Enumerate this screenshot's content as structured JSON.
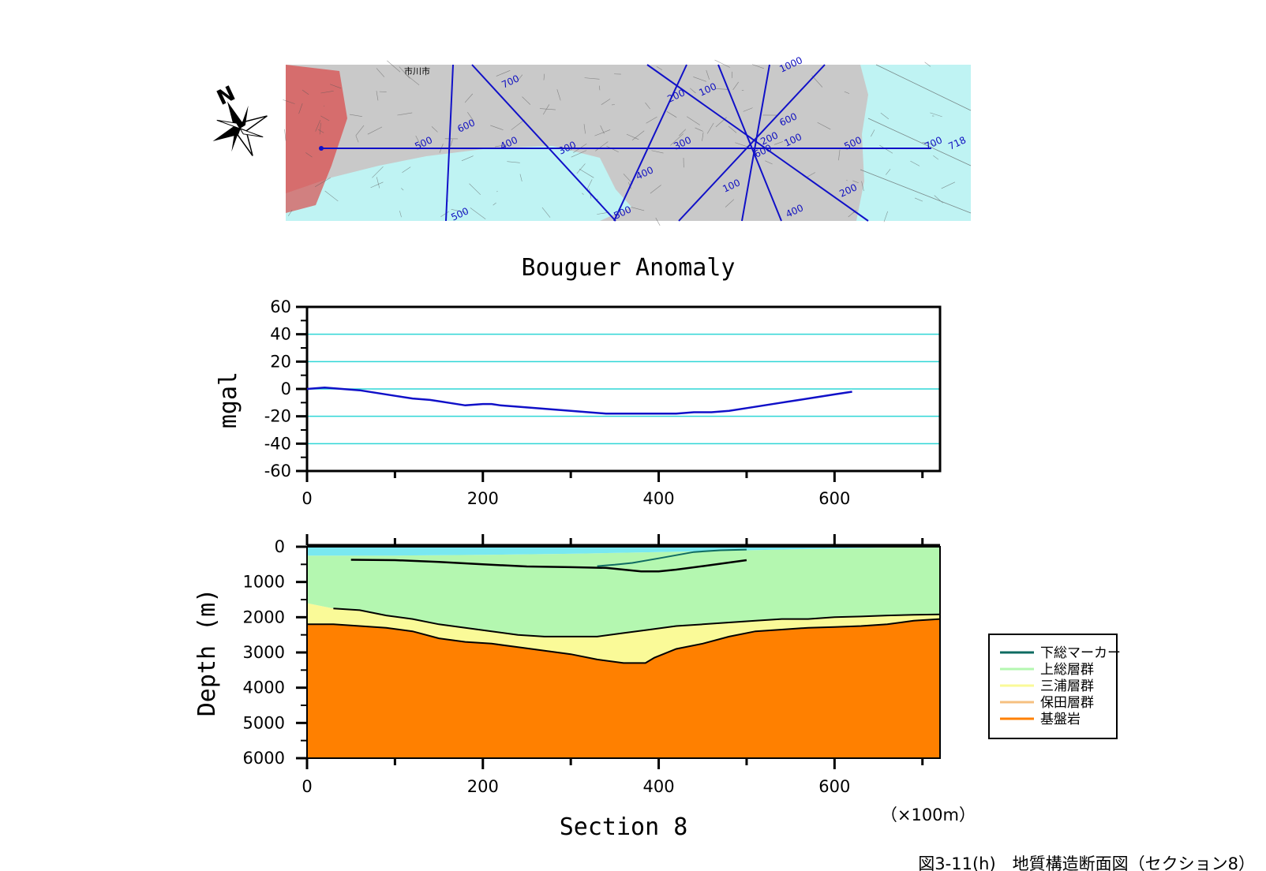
{
  "map": {
    "place_label": "市川市",
    "line_labels": [
      "700",
      "600",
      "500",
      "400",
      "300",
      "200",
      "100",
      "1000",
      "718",
      "700",
      "600",
      "500",
      "400",
      "300",
      "200",
      "100",
      "500",
      "200",
      "600",
      "100",
      "400",
      "500"
    ],
    "compass_label": "N"
  },
  "colors": {
    "water": "#bff3f3",
    "gravity_line": "#1010c8",
    "grid": "#2fd6d6",
    "shimousa_marker": "#0f6b62",
    "kazusa": "#b4f7b0",
    "miura": "#fafa98",
    "hoda": "#f6c080",
    "basement": "#ff8000",
    "sea_layer": "#79e8f0"
  },
  "chart_data": [
    {
      "type": "line",
      "title": "Bouguer Anomaly",
      "xlabel": "",
      "ylabel": "mgal",
      "xlim": [
        0,
        720
      ],
      "ylim": [
        -60,
        60
      ],
      "x_ticks": [
        0,
        200,
        400,
        600
      ],
      "y_ticks": [
        60,
        40,
        20,
        0,
        -20,
        -40,
        -60
      ],
      "grid": "horizontal",
      "series": [
        {
          "x": [
            0,
            20,
            40,
            60,
            80,
            100,
            120,
            140,
            160,
            180,
            200,
            210,
            220,
            240,
            260,
            280,
            300,
            320,
            340,
            360,
            380,
            400,
            420,
            440,
            460,
            480,
            500,
            520,
            540,
            560,
            580,
            600,
            620
          ],
          "y": [
            0,
            1,
            0,
            -1,
            -3,
            -5,
            -7,
            -8,
            -10,
            -12,
            -11,
            -11,
            -12,
            -13,
            -14,
            -15,
            -16,
            -17,
            -18,
            -18,
            -18,
            -18,
            -18,
            -17,
            -17,
            -16,
            -14,
            -12,
            -10,
            -8,
            -6,
            -4,
            -2
          ]
        }
      ]
    },
    {
      "type": "area",
      "title": "",
      "xlabel": "Section 8",
      "ylabel": "Depth (m)",
      "xlim": [
        0,
        720
      ],
      "ylim": [
        6000,
        0
      ],
      "x_ticks": [
        0,
        200,
        400,
        600
      ],
      "y_ticks": [
        0,
        1000,
        2000,
        3000,
        4000,
        5000,
        6000
      ],
      "unit_note": "（×100m）",
      "legend_position": "right",
      "legend": [
        "下総マーカー",
        "上総層群",
        "三浦層群",
        "保田層群",
        "基盤岩"
      ],
      "layers": {
        "sea_bottom": {
          "x": [
            0,
            100,
            200,
            300,
            400,
            500,
            600,
            720
          ],
          "depth": [
            250,
            250,
            230,
            200,
            150,
            100,
            50,
            0
          ]
        },
        "shimousa_marker": {
          "x": [
            330,
            350,
            370,
            400,
            440,
            470,
            500
          ],
          "depth": [
            550,
            510,
            460,
            330,
            150,
            100,
            80
          ]
        },
        "kazusa_base_line": {
          "x": [
            50,
            100,
            150,
            200,
            250,
            300,
            340,
            360,
            380,
            400,
            420,
            450,
            500
          ],
          "depth": [
            370,
            380,
            430,
            500,
            560,
            580,
            600,
            650,
            700,
            700,
            650,
            550,
            380
          ]
        },
        "miura_top": {
          "x": [
            0,
            30,
            60,
            90,
            120,
            150,
            180,
            210,
            240,
            270,
            300,
            330,
            360,
            390,
            420,
            450,
            480,
            510,
            540,
            570,
            600,
            630,
            660,
            690,
            720
          ],
          "depth": [
            1600,
            1750,
            1800,
            1950,
            2050,
            2200,
            2300,
            2400,
            2500,
            2550,
            2550,
            2550,
            2450,
            2350,
            2250,
            2200,
            2150,
            2100,
            2050,
            2050,
            2000,
            1980,
            1950,
            1930,
            1920
          ]
        },
        "basement_top": {
          "x": [
            0,
            30,
            60,
            90,
            120,
            150,
            180,
            210,
            240,
            270,
            300,
            330,
            360,
            385,
            395,
            420,
            450,
            480,
            510,
            540,
            570,
            600,
            630,
            660,
            690,
            720
          ],
          "depth": [
            2200,
            2200,
            2250,
            2300,
            2400,
            2600,
            2700,
            2750,
            2850,
            2950,
            3050,
            3200,
            3300,
            3300,
            3150,
            2900,
            2750,
            2550,
            2400,
            2350,
            2300,
            2280,
            2250,
            2200,
            2100,
            2050
          ]
        }
      }
    }
  ],
  "caption": "図3-11(h)　地質構造断面図（セクション8）"
}
